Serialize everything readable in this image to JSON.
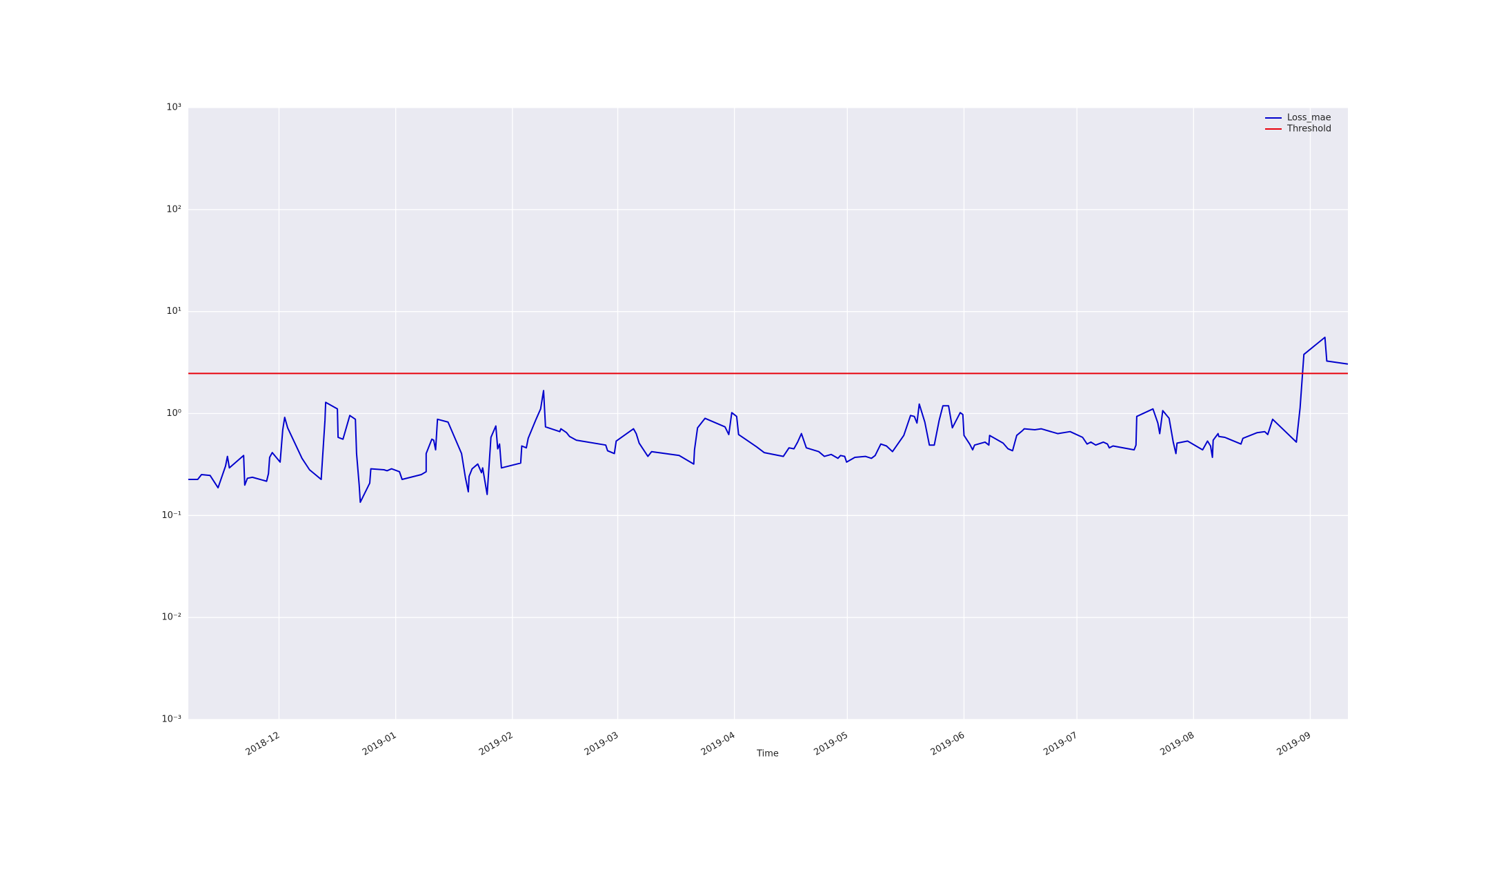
{
  "chart_data": {
    "type": "line",
    "xlabel": "Time",
    "xlim": [
      -24.1,
      284.0
    ],
    "xticks": [
      {
        "value": 0,
        "label": "2018-12"
      },
      {
        "value": 31,
        "label": "2019-01"
      },
      {
        "value": 62,
        "label": "2019-02"
      },
      {
        "value": 90,
        "label": "2019-03"
      },
      {
        "value": 121,
        "label": "2019-04"
      },
      {
        "value": 151,
        "label": "2019-05"
      },
      {
        "value": 182,
        "label": "2019-06"
      },
      {
        "value": 212,
        "label": "2019-07"
      },
      {
        "value": 243,
        "label": "2019-08"
      },
      {
        "value": 274,
        "label": "2019-09"
      }
    ],
    "ylim": [
      0.001,
      1000
    ],
    "yticks": [
      {
        "value": 0.001,
        "label": "10⁻³"
      },
      {
        "value": 0.01,
        "label": "10⁻²"
      },
      {
        "value": 0.1,
        "label": "10⁻¹"
      },
      {
        "value": 1,
        "label": "10⁰"
      },
      {
        "value": 10,
        "label": "10¹"
      },
      {
        "value": 100,
        "label": "10²"
      },
      {
        "value": 1000,
        "label": "10³"
      }
    ],
    "log_y": true,
    "grid": true,
    "legend": "upper right",
    "series": [
      {
        "name": "Loss_mae",
        "color": "#0000cc",
        "x": [
          -24.1,
          -21.6,
          -20.6,
          -18.3,
          -16.2,
          -14.2,
          -13.7,
          -13.2,
          -9.4,
          -9.1,
          -8.4,
          -7.1,
          -3.3,
          -2.8,
          -2.5,
          -1.8,
          0.3,
          1.0,
          1.5,
          2.3,
          6.1,
          8.1,
          11.2,
          12.2,
          12.4,
          15.5,
          15.7,
          17.0,
          18.8,
          20.3,
          20.6,
          21.3,
          21.6,
          24.1,
          24.4,
          27.9,
          28.7,
          29.9,
          32.0,
          32.7,
          37.8,
          39.1,
          39.1,
          40.6,
          41.1,
          41.6,
          42.1,
          44.9,
          48.5,
          49.5,
          50.3,
          50.5,
          51.3,
          52.8,
          53.8,
          54.1,
          55.3,
          56.3,
          57.6,
          58.1,
          58.6,
          59.1,
          64.2,
          64.5,
          65.7,
          66.2,
          68.3,
          69.5,
          70.3,
          70.8,
          74.6,
          74.9,
          76.4,
          77.2,
          79.0,
          86.8,
          87.3,
          89.1,
          89.6,
          94.2,
          94.9,
          95.7,
          98.0,
          99.0,
          106.3,
          110.2,
          110.4,
          111.2,
          113.2,
          118.5,
          119.5,
          120.3,
          121.6,
          122.1,
          126.9,
          128.9,
          134.0,
          135.5,
          136.8,
          137.8,
          138.8,
          140.1,
          143.4,
          144.9,
          146.7,
          148.5,
          149.2,
          150.3,
          150.8,
          153.0,
          155.8,
          157.4,
          158.4,
          159.9,
          161.4,
          163.0,
          166.0,
          167.8,
          168.8,
          169.5,
          170.1,
          171.6,
          172.8,
          174.1,
          175.4,
          176.4,
          177.9,
          178.9,
          181.0,
          181.7,
          182.0,
          183.5,
          184.3,
          184.8,
          187.6,
          188.6,
          188.8,
          192.4,
          193.7,
          194.9,
          196.0,
          197.5,
          198.0,
          200.8,
          202.5,
          206.9,
          210.2,
          213.5,
          214.7,
          215.7,
          217.0,
          219.0,
          220.1,
          220.6,
          221.6,
          227.2,
          227.7,
          227.9,
          232.2,
          233.5,
          234.0,
          234.8,
          236.5,
          237.6,
          238.3,
          238.6,
          241.4,
          245.4,
          246.7,
          247.5,
          248.0,
          248.2,
          249.5,
          249.7,
          251.3,
          255.6,
          256.1,
          259.9,
          261.9,
          262.7,
          264.0,
          270.3,
          271.3,
          272.3,
          277.9,
          278.4,
          284.0
        ],
        "values": [
          0.226,
          0.226,
          0.252,
          0.247,
          0.187,
          0.306,
          0.38,
          0.293,
          0.388,
          0.199,
          0.232,
          0.237,
          0.217,
          0.258,
          0.372,
          0.414,
          0.334,
          0.694,
          0.918,
          0.724,
          0.364,
          0.281,
          0.226,
          0.86,
          1.29,
          1.11,
          0.584,
          0.56,
          0.958,
          0.879,
          0.405,
          0.199,
          0.135,
          0.208,
          0.287,
          0.281,
          0.275,
          0.287,
          0.269,
          0.226,
          0.252,
          0.269,
          0.405,
          0.56,
          0.548,
          0.441,
          0.879,
          0.824,
          0.405,
          0.237,
          0.171,
          0.242,
          0.287,
          0.32,
          0.263,
          0.293,
          0.161,
          0.584,
          0.756,
          0.451,
          0.502,
          0.293,
          0.327,
          0.481,
          0.461,
          0.572,
          0.879,
          1.11,
          1.68,
          0.74,
          0.665,
          0.709,
          0.65,
          0.596,
          0.548,
          0.491,
          0.432,
          0.405,
          0.537,
          0.709,
          0.636,
          0.513,
          0.38,
          0.423,
          0.388,
          0.32,
          0.441,
          0.724,
          0.898,
          0.74,
          0.623,
          1.02,
          0.937,
          0.623,
          0.471,
          0.414,
          0.38,
          0.461,
          0.451,
          0.525,
          0.636,
          0.461,
          0.423,
          0.38,
          0.397,
          0.364,
          0.388,
          0.38,
          0.334,
          0.372,
          0.38,
          0.364,
          0.388,
          0.502,
          0.481,
          0.423,
          0.61,
          0.958,
          0.937,
          0.806,
          1.24,
          0.824,
          0.491,
          0.491,
          0.86,
          1.19,
          1.19,
          0.724,
          1.02,
          0.979,
          0.61,
          0.502,
          0.441,
          0.491,
          0.525,
          0.491,
          0.61,
          0.513,
          0.451,
          0.432,
          0.61,
          0.679,
          0.709,
          0.694,
          0.709,
          0.636,
          0.665,
          0.584,
          0.502,
          0.525,
          0.491,
          0.525,
          0.502,
          0.461,
          0.481,
          0.441,
          0.491,
          0.937,
          1.11,
          0.806,
          0.636,
          1.07,
          0.898,
          0.525,
          0.405,
          0.513,
          0.537,
          0.441,
          0.537,
          0.481,
          0.372,
          0.548,
          0.636,
          0.596,
          0.584,
          0.502,
          0.572,
          0.65,
          0.665,
          0.623,
          0.879,
          0.525,
          1.14,
          3.8,
          5.59,
          3.27,
          3.06
        ]
      },
      {
        "name": "Threshold",
        "color": "#e8000b",
        "x": [
          -24.1,
          284.0
        ],
        "values": [
          2.47,
          2.47
        ]
      }
    ]
  }
}
